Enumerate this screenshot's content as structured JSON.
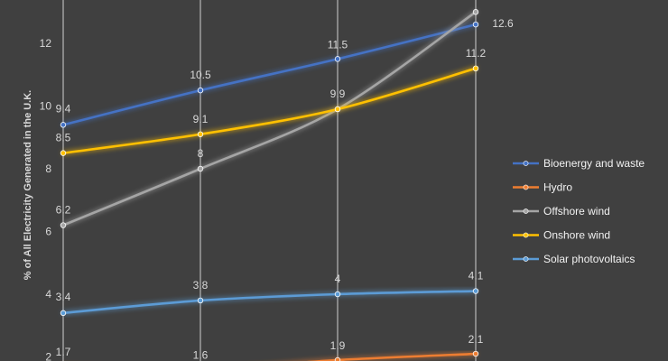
{
  "chart_data": {
    "type": "line",
    "title": "",
    "xlabel": "",
    "ylabel": "% of All Electricity Generated in the U.K.",
    "x_count": 4,
    "ylim": [
      2,
      14
    ],
    "yticks": [
      2,
      4,
      6,
      8,
      10,
      12
    ],
    "grid": "vertical",
    "legend_position": "right",
    "series": [
      {
        "name": "Bioenergy and waste",
        "color": "#4472c4",
        "values": [
          9.4,
          10.5,
          11.5,
          12.6
        ],
        "labels": [
          "9.4",
          "10.5",
          "11.5",
          "12.6"
        ]
      },
      {
        "name": "Hydro",
        "color": "#ed7d31",
        "values": [
          1.7,
          1.6,
          1.9,
          2.1
        ],
        "labels": [
          "1.7",
          "1.6",
          "1.9",
          "2.1"
        ]
      },
      {
        "name": "Offshore wind",
        "color": "#a5a5a5",
        "values": [
          6.2,
          8,
          9.9,
          13.0
        ],
        "labels": [
          "6.2",
          "8",
          "",
          ""
        ]
      },
      {
        "name": "Onshore wind",
        "color": "#ffc000",
        "values": [
          8.5,
          9.1,
          9.9,
          11.2
        ],
        "labels": [
          "8.5",
          "9.1",
          "9.9",
          "11.2"
        ]
      },
      {
        "name": "Solar photovoltaics",
        "color": "#5b9bd5",
        "values": [
          3.4,
          3.8,
          4,
          4.1
        ],
        "labels": [
          "3.4",
          "3.8",
          "4",
          "4.1"
        ]
      }
    ]
  }
}
